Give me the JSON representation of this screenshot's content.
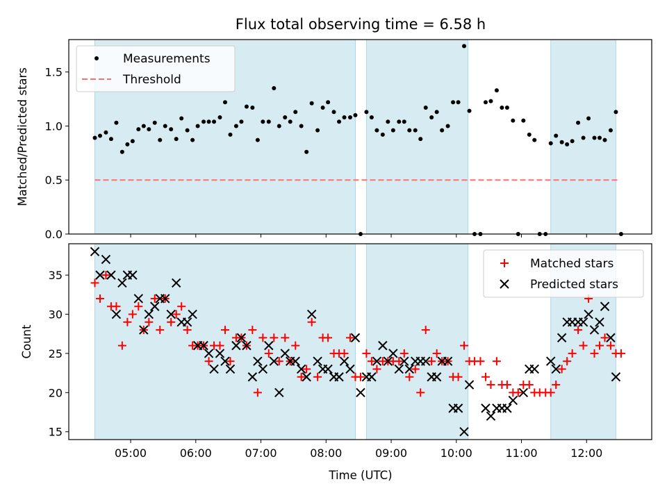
{
  "title": "Flux total observing time = 6.58 h",
  "colors": {
    "band": "#add8e6",
    "threshold": "#ff6f6f",
    "measurements": "#000000",
    "matched": "#ff0000",
    "predicted": "#000000"
  },
  "x_axis": {
    "label": "Time (UTC)",
    "range_hours": [
      4.05,
      13.0
    ],
    "ticks": [
      {
        "value": 5,
        "label": "05:00"
      },
      {
        "value": 6,
        "label": "06:00"
      },
      {
        "value": 7,
        "label": "07:00"
      },
      {
        "value": 8,
        "label": "08:00"
      },
      {
        "value": 9,
        "label": "09:00"
      },
      {
        "value": 10,
        "label": "10:00"
      },
      {
        "value": 11,
        "label": "11:00"
      },
      {
        "value": 12,
        "label": "12:00"
      }
    ]
  },
  "chart_data": [
    {
      "type": "scatter",
      "title": "Flux total observing time = 6.58 h",
      "ylabel": "Matched/Predicted stars",
      "ylim": [
        0,
        1.8
      ],
      "yticks": [
        {
          "value": 0.0,
          "label": "0.0"
        },
        {
          "value": 0.5,
          "label": "0.5"
        },
        {
          "value": 1.0,
          "label": "1.0"
        },
        {
          "value": 1.5,
          "label": "1.5"
        }
      ],
      "shaded_intervals": [
        [
          4.45,
          8.45
        ],
        [
          8.62,
          10.18
        ],
        [
          11.45,
          12.45
        ]
      ],
      "legend": {
        "position": "upper-left",
        "entries": [
          "Measurements",
          "Threshold"
        ]
      },
      "threshold": {
        "name": "Threshold",
        "y": 0.5,
        "x_range": [
          4.45,
          12.5
        ]
      },
      "series": [
        {
          "name": "Measurements",
          "x": [
            4.45,
            4.53,
            4.62,
            4.7,
            4.78,
            4.87,
            4.95,
            5.03,
            5.12,
            5.2,
            5.28,
            5.37,
            5.45,
            5.53,
            5.62,
            5.7,
            5.78,
            5.87,
            5.95,
            6.03,
            6.12,
            6.2,
            6.28,
            6.37,
            6.45,
            6.53,
            6.62,
            6.7,
            6.78,
            6.87,
            6.95,
            7.03,
            7.12,
            7.2,
            7.28,
            7.37,
            7.45,
            7.53,
            7.62,
            7.7,
            7.78,
            7.87,
            7.95,
            8.03,
            8.12,
            8.2,
            8.28,
            8.37,
            8.45,
            8.53,
            8.62,
            8.7,
            8.78,
            8.87,
            8.95,
            9.03,
            9.12,
            9.2,
            9.28,
            9.37,
            9.45,
            9.53,
            9.62,
            9.7,
            9.78,
            9.87,
            9.95,
            10.03,
            10.12,
            10.2,
            10.28,
            10.37,
            10.45,
            10.53,
            10.62,
            10.7,
            10.78,
            10.87,
            10.95,
            11.03,
            11.12,
            11.2,
            11.28,
            11.37,
            11.45,
            11.53,
            11.62,
            11.7,
            11.78,
            11.87,
            11.95,
            12.03,
            12.12,
            12.2,
            12.28,
            12.37,
            12.45,
            12.53
          ],
          "y": [
            0.89,
            0.91,
            0.94,
            0.88,
            1.03,
            0.76,
            0.83,
            0.86,
            0.97,
            1.0,
            0.97,
            1.03,
            0.87,
            1.0,
            0.97,
            0.88,
            1.07,
            0.96,
            0.87,
            1.0,
            1.04,
            1.04,
            1.04,
            1.08,
            1.22,
            0.92,
            1.0,
            1.04,
            1.18,
            1.17,
            0.87,
            1.04,
            1.04,
            1.35,
            1.0,
            1.08,
            1.04,
            1.13,
            1.0,
            0.76,
            1.21,
            0.96,
            1.17,
            1.22,
            1.13,
            1.04,
            1.08,
            1.08,
            1.1,
            0.0,
            1.13,
            1.08,
            0.96,
            0.92,
            1.04,
            0.96,
            1.04,
            1.04,
            0.96,
            0.96,
            0.88,
            1.17,
            1.08,
            1.13,
            0.96,
            1.0,
            1.22,
            1.22,
            1.74,
            1.14,
            0.0,
            0.0,
            1.22,
            1.23,
            1.33,
            1.17,
            1.17,
            1.05,
            0.0,
            1.05,
            0.92,
            0.87,
            0.0,
            0.0,
            0.84,
            0.91,
            0.85,
            0.83,
            0.86,
            1.03,
            0.89,
            1.07,
            0.89,
            0.89,
            0.87,
            0.96,
            1.13,
            0.0
          ]
        }
      ]
    },
    {
      "type": "scatter",
      "xlabel": "Time (UTC)",
      "ylabel": "Count",
      "ylim": [
        14,
        39
      ],
      "yticks": [
        {
          "value": 15,
          "label": "15"
        },
        {
          "value": 20,
          "label": "20"
        },
        {
          "value": 25,
          "label": "25"
        },
        {
          "value": 30,
          "label": "30"
        },
        {
          "value": 35,
          "label": "35"
        }
      ],
      "shaded_intervals": [
        [
          4.45,
          8.45
        ],
        [
          8.62,
          10.18
        ],
        [
          11.45,
          12.45
        ]
      ],
      "legend": {
        "position": "upper-right",
        "entries": [
          "Matched stars",
          "Predicted stars"
        ]
      },
      "series": [
        {
          "name": "Matched stars",
          "marker": "plus",
          "x": [
            4.45,
            4.53,
            4.62,
            4.7,
            4.78,
            4.87,
            4.95,
            5.03,
            5.12,
            5.2,
            5.28,
            5.37,
            5.45,
            5.53,
            5.62,
            5.7,
            5.78,
            5.87,
            5.95,
            6.03,
            6.12,
            6.2,
            6.28,
            6.37,
            6.45,
            6.53,
            6.62,
            6.7,
            6.78,
            6.87,
            6.95,
            7.03,
            7.12,
            7.2,
            7.28,
            7.37,
            7.45,
            7.53,
            7.62,
            7.7,
            7.78,
            7.87,
            7.95,
            8.03,
            8.12,
            8.2,
            8.28,
            8.37,
            8.45,
            8.53,
            8.62,
            8.7,
            8.78,
            8.87,
            8.95,
            9.03,
            9.12,
            9.2,
            9.28,
            9.37,
            9.45,
            9.53,
            9.62,
            9.7,
            9.78,
            9.87,
            9.95,
            10.03,
            10.12,
            10.2,
            10.28,
            10.37,
            10.45,
            10.53,
            10.62,
            10.7,
            10.78,
            10.87,
            10.95,
            11.03,
            11.12,
            11.2,
            11.28,
            11.37,
            11.45,
            11.53,
            11.62,
            11.7,
            11.78,
            11.87,
            11.95,
            12.03,
            12.12,
            12.2,
            12.28,
            12.37,
            12.45,
            12.53
          ],
          "y": [
            34,
            32,
            35,
            31,
            31,
            26,
            29,
            30,
            31,
            28,
            29,
            32,
            28,
            32,
            29,
            30,
            31,
            28,
            26,
            26,
            26,
            24,
            26,
            26,
            28,
            24,
            27,
            27,
            26,
            28,
            20,
            27,
            25,
            27,
            24,
            27,
            24,
            26,
            22,
            23,
            29,
            22,
            27,
            27,
            25,
            25,
            25,
            27,
            22,
            22,
            25,
            24,
            23,
            24,
            24,
            24,
            24,
            25,
            22,
            23,
            20,
            28,
            24,
            25,
            24,
            24,
            22,
            22,
            26,
            24,
            24,
            24,
            22,
            21,
            24,
            21,
            21,
            20,
            20,
            21,
            21,
            20,
            20,
            20,
            20,
            21,
            23,
            24,
            25,
            28,
            26,
            32,
            25,
            26,
            27,
            26,
            25,
            25
          ]
        },
        {
          "name": "Predicted stars",
          "marker": "x",
          "x": [
            4.45,
            4.53,
            4.62,
            4.7,
            4.78,
            4.87,
            4.95,
            5.03,
            5.12,
            5.2,
            5.28,
            5.37,
            5.45,
            5.53,
            5.62,
            5.7,
            5.78,
            5.87,
            5.95,
            6.03,
            6.12,
            6.2,
            6.28,
            6.37,
            6.45,
            6.53,
            6.62,
            6.7,
            6.78,
            6.87,
            6.95,
            7.03,
            7.12,
            7.2,
            7.28,
            7.37,
            7.45,
            7.53,
            7.62,
            7.7,
            7.78,
            7.87,
            7.95,
            8.03,
            8.12,
            8.2,
            8.28,
            8.37,
            8.45,
            8.53,
            8.62,
            8.7,
            8.78,
            8.87,
            8.95,
            9.03,
            9.12,
            9.2,
            9.28,
            9.37,
            9.45,
            9.53,
            9.62,
            9.7,
            9.78,
            9.87,
            9.95,
            10.03,
            10.12,
            10.2,
            10.45,
            10.53,
            10.62,
            10.7,
            10.78,
            10.87,
            11.03,
            11.12,
            11.2,
            11.45,
            11.53,
            11.62,
            11.7,
            11.78,
            11.87,
            11.95,
            12.03,
            12.12,
            12.2,
            12.28,
            12.37,
            12.45
          ],
          "y": [
            38,
            35,
            37,
            35,
            30,
            34,
            35,
            35,
            32,
            28,
            30,
            31,
            32,
            32,
            30,
            34,
            29,
            29,
            30,
            26,
            26,
            25,
            23,
            25,
            24,
            23,
            26,
            27,
            26,
            22,
            24,
            23,
            26,
            24,
            20,
            25,
            24,
            24,
            23,
            22,
            30,
            24,
            23,
            23,
            22,
            22,
            24,
            23,
            27,
            20,
            22,
            22,
            24,
            26,
            24,
            25,
            23,
            24,
            23,
            24,
            24,
            24,
            22,
            22,
            24,
            24,
            18,
            18,
            15,
            21,
            18,
            17,
            18,
            18,
            18,
            19,
            20,
            23,
            23,
            24,
            23,
            27,
            29,
            29,
            29,
            29,
            30,
            28,
            29,
            31,
            27,
            22
          ]
        }
      ]
    }
  ]
}
